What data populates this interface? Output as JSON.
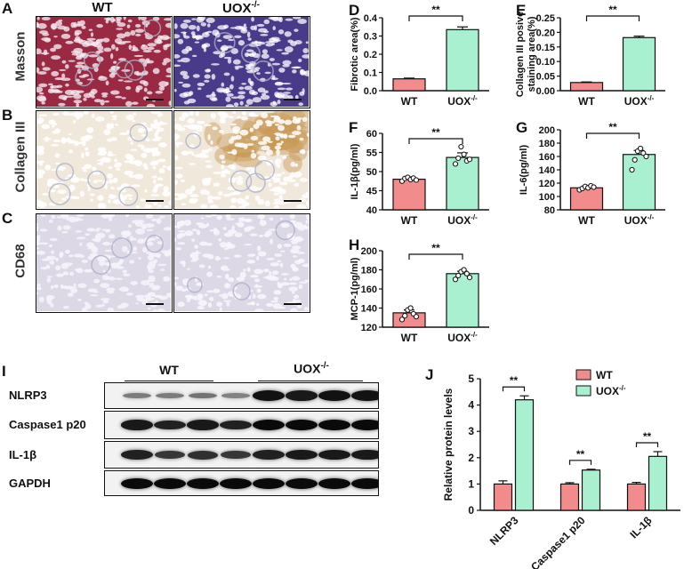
{
  "panels": [
    "A",
    "B",
    "C",
    "D",
    "E",
    "F",
    "G",
    "H",
    "I",
    "J"
  ],
  "histology": {
    "columns": [
      "WT",
      "UOX-/-"
    ],
    "rows": [
      "Masson",
      "Collagen III",
      "CD68"
    ]
  },
  "colors": {
    "wt": "#f28b8b",
    "uox": "#a8f0d0",
    "masson_wt": "#9a2a44",
    "masson_uox": "#4a3a8a",
    "collagen_bg": "#f1e8dc",
    "collagen_stain": "#c89a55",
    "cd68_bg": "#dcd8e6"
  },
  "chart_data": [
    {
      "id": "D",
      "type": "bar",
      "categories": [
        "WT",
        "UOX-/-"
      ],
      "values": [
        0.065,
        0.335
      ],
      "errors": [
        0.004,
        0.015
      ],
      "ylabel": "Fibrotic area(%)",
      "ylim": [
        0,
        0.4
      ],
      "yticks": [
        "0.0",
        "0.1",
        "0.2",
        "0.3",
        "0.4"
      ],
      "tickvals": [
        0,
        0.1,
        0.2,
        0.3,
        0.4
      ],
      "significance": "**",
      "points": []
    },
    {
      "id": "E",
      "type": "bar",
      "categories": [
        "WT",
        "UOX-/-"
      ],
      "values": [
        0.028,
        0.182
      ],
      "errors": [
        0.002,
        0.005
      ],
      "ylabel": "Collagen III posive staining area(%)",
      "ylim": [
        0,
        0.25
      ],
      "yticks": [
        "0.00",
        "0.05",
        "0.10",
        "0.15",
        "0.20",
        "0.25"
      ],
      "tickvals": [
        0,
        0.05,
        0.1,
        0.15,
        0.2,
        0.25
      ],
      "significance": "**",
      "points": []
    },
    {
      "id": "F",
      "type": "bar",
      "categories": [
        "WT",
        "UOX-/-"
      ],
      "values": [
        48,
        53.7
      ],
      "errors": [
        0.6,
        1.2
      ],
      "ylabel": "IL-1β(pg/ml)",
      "ylim": [
        40,
        60
      ],
      "yticks": [
        "40",
        "45",
        "50",
        "55",
        "60"
      ],
      "tickvals": [
        40,
        45,
        50,
        55,
        60
      ],
      "significance": "**",
      "points": [
        [
          47.5,
          48.2,
          48.5,
          47.9,
          48.3,
          47.8
        ],
        [
          52.0,
          53.5,
          56.5,
          54.5,
          52.8,
          53.2
        ]
      ]
    },
    {
      "id": "G",
      "type": "bar",
      "categories": [
        "WT",
        "UOX-/-"
      ],
      "values": [
        113,
        163
      ],
      "errors": [
        2.5,
        6
      ],
      "ylabel": "IL-6(pg/ml)",
      "ylim": [
        80,
        200
      ],
      "yticks": [
        "80",
        "100",
        "120",
        "140",
        "160",
        "180",
        "200"
      ],
      "tickvals": [
        80,
        100,
        120,
        140,
        160,
        180,
        200
      ],
      "significance": "**",
      "points": [
        [
          110,
          112,
          115,
          113,
          116,
          114
        ],
        [
          140,
          155,
          168,
          172,
          165,
          160
        ]
      ]
    },
    {
      "id": "H",
      "type": "bar",
      "categories": [
        "WT",
        "UOX-/-"
      ],
      "values": [
        135,
        176
      ],
      "errors": [
        3,
        2.5
      ],
      "ylabel": "MCP-1(pg/ml)",
      "ylim": [
        120,
        200
      ],
      "yticks": [
        "120",
        "140",
        "160",
        "180",
        "200"
      ],
      "tickvals": [
        120,
        140,
        160,
        180,
        200
      ],
      "significance": "**",
      "points": [
        [
          128,
          132,
          138,
          140,
          134,
          131
        ],
        [
          170,
          174,
          178,
          180,
          176,
          172
        ]
      ]
    },
    {
      "id": "J",
      "type": "bar",
      "categories": [
        "NLRP3",
        "Caspase1 p20",
        "IL-1β"
      ],
      "series": [
        {
          "name": "WT",
          "values": [
            1.0,
            1.0,
            1.0
          ],
          "errors": [
            0.12,
            0.05,
            0.06
          ]
        },
        {
          "name": "UOX-/-",
          "values": [
            4.2,
            1.53,
            2.05
          ],
          "errors": [
            0.15,
            0.03,
            0.18
          ]
        }
      ],
      "ylabel": "Relative protein levels",
      "ylim": [
        0,
        5
      ],
      "yticks": [
        "0",
        "1",
        "2",
        "3",
        "4",
        "5"
      ],
      "tickvals": [
        0,
        1,
        2,
        3,
        4,
        5
      ],
      "significance": [
        "**",
        "**",
        "**"
      ],
      "legend": "top-right"
    }
  ],
  "western_blot": {
    "groups": [
      "WT",
      "UOX-/-"
    ],
    "rows": [
      {
        "label": "NLRP3",
        "intensity": [
          0.25,
          0.25,
          0.3,
          0.2,
          0.95,
          0.9,
          0.95,
          0.95
        ]
      },
      {
        "label": "Caspase1 p20",
        "intensity": [
          0.9,
          0.85,
          0.9,
          0.85,
          1.0,
          1.0,
          1.0,
          1.0
        ]
      },
      {
        "label": "IL-1β",
        "intensity": [
          0.85,
          0.7,
          0.75,
          0.7,
          0.85,
          0.9,
          0.9,
          0.9
        ]
      },
      {
        "label": "GAPDH",
        "intensity": [
          1.0,
          1.0,
          1.0,
          1.0,
          1.0,
          1.0,
          1.0,
          1.0
        ]
      }
    ]
  }
}
